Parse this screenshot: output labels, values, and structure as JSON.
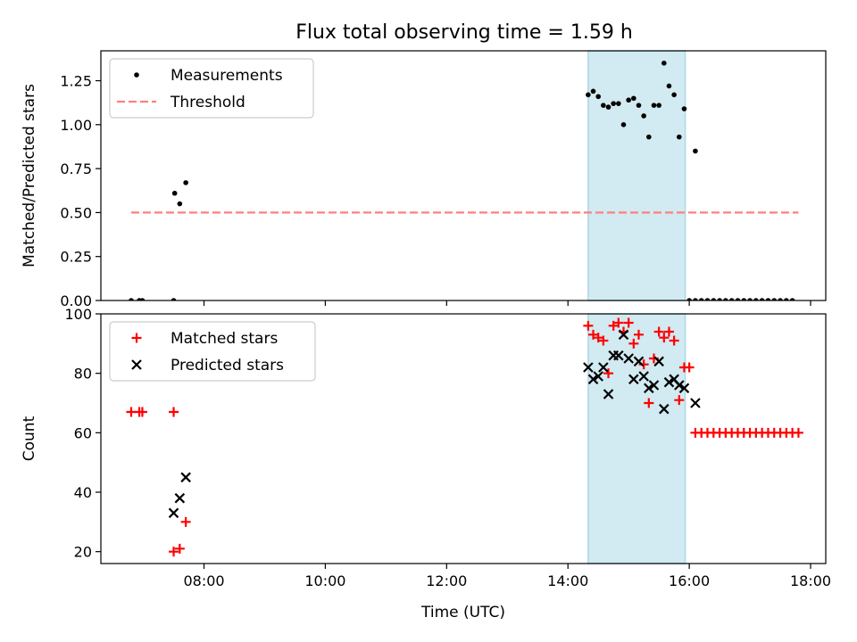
{
  "chart_data": [
    {
      "type": "scatter",
      "title": "Flux total observing time = 1.59 h",
      "xlabel": "",
      "ylabel": "Matched/Predicted stars",
      "xlim": [
        "06:18",
        "18:15"
      ],
      "ylim": [
        0,
        1.42
      ],
      "yticks": [
        0.0,
        0.25,
        0.5,
        0.75,
        1.0,
        1.25
      ],
      "ytick_labels": [
        "0.00",
        "0.25",
        "0.50",
        "0.75",
        "1.00",
        "1.25"
      ],
      "xticks": [
        "08:00",
        "10:00",
        "12:00",
        "14:00",
        "16:00",
        "18:00"
      ],
      "shaded_span": [
        "14:20",
        "15:56"
      ],
      "shade_color": "#add8e6",
      "legend_position": "upper left",
      "series": [
        {
          "name": "Measurements",
          "marker": "dot",
          "color": "#000000",
          "points": [
            [
              "06:48",
              0.0
            ],
            [
              "06:56",
              0.0
            ],
            [
              "06:59",
              0.0
            ],
            [
              "07:30",
              0.0
            ],
            [
              "07:31",
              0.61
            ],
            [
              "07:36",
              0.55
            ],
            [
              "07:42",
              0.67
            ],
            [
              "14:20",
              1.17
            ],
            [
              "14:25",
              1.19
            ],
            [
              "14:30",
              1.16
            ],
            [
              "14:35",
              1.11
            ],
            [
              "14:40",
              1.1
            ],
            [
              "14:45",
              1.12
            ],
            [
              "14:50",
              1.12
            ],
            [
              "14:55",
              1.0
            ],
            [
              "15:00",
              1.14
            ],
            [
              "15:05",
              1.15
            ],
            [
              "15:10",
              1.11
            ],
            [
              "15:15",
              1.05
            ],
            [
              "15:20",
              0.93
            ],
            [
              "15:25",
              1.11
            ],
            [
              "15:30",
              1.11
            ],
            [
              "15:35",
              1.35
            ],
            [
              "15:40",
              1.22
            ],
            [
              "15:45",
              1.17
            ],
            [
              "15:50",
              0.93
            ],
            [
              "15:55",
              1.09
            ],
            [
              "16:06",
              0.85
            ],
            [
              "16:00",
              0.0
            ],
            [
              "16:06",
              0.0
            ],
            [
              "16:12",
              0.0
            ],
            [
              "16:18",
              0.0
            ],
            [
              "16:24",
              0.0
            ],
            [
              "16:30",
              0.0
            ],
            [
              "16:36",
              0.0
            ],
            [
              "16:42",
              0.0
            ],
            [
              "16:48",
              0.0
            ],
            [
              "16:54",
              0.0
            ],
            [
              "17:00",
              0.0
            ],
            [
              "17:06",
              0.0
            ],
            [
              "17:12",
              0.0
            ],
            [
              "17:18",
              0.0
            ],
            [
              "17:24",
              0.0
            ],
            [
              "17:30",
              0.0
            ],
            [
              "17:36",
              0.0
            ],
            [
              "17:42",
              0.0
            ]
          ]
        },
        {
          "name": "Threshold",
          "marker": "dashed-line",
          "color": "#ff7f7f",
          "points": [
            [
              "06:48",
              0.5
            ],
            [
              "17:48",
              0.5
            ]
          ]
        }
      ]
    },
    {
      "type": "scatter",
      "title": "",
      "xlabel": "Time (UTC)",
      "ylabel": "Count",
      "xlim": [
        "06:18",
        "18:15"
      ],
      "ylim": [
        16,
        100
      ],
      "yticks": [
        20,
        40,
        60,
        80,
        100
      ],
      "ytick_labels": [
        "20",
        "40",
        "60",
        "80",
        "100"
      ],
      "xticks": [
        "08:00",
        "10:00",
        "12:00",
        "14:00",
        "16:00",
        "18:00"
      ],
      "xtick_labels": [
        "08:00",
        "10:00",
        "12:00",
        "14:00",
        "16:00",
        "18:00"
      ],
      "shaded_span": [
        "14:20",
        "15:56"
      ],
      "shade_color": "#add8e6",
      "legend_position": "upper left",
      "series": [
        {
          "name": "Matched stars",
          "marker": "plus",
          "color": "#ff0000",
          "points": [
            [
              "06:48",
              67
            ],
            [
              "06:56",
              67
            ],
            [
              "06:59",
              67
            ],
            [
              "07:30",
              67
            ],
            [
              "07:30",
              20
            ],
            [
              "07:36",
              21
            ],
            [
              "07:42",
              30
            ],
            [
              "14:20",
              96
            ],
            [
              "14:25",
              93
            ],
            [
              "14:30",
              92
            ],
            [
              "14:35",
              91
            ],
            [
              "14:40",
              80
            ],
            [
              "14:45",
              96
            ],
            [
              "14:50",
              97
            ],
            [
              "14:55",
              94
            ],
            [
              "15:00",
              97
            ],
            [
              "15:05",
              90
            ],
            [
              "15:10",
              93
            ],
            [
              "15:15",
              83
            ],
            [
              "15:20",
              70
            ],
            [
              "15:25",
              85
            ],
            [
              "15:30",
              94
            ],
            [
              "15:35",
              92
            ],
            [
              "15:40",
              94
            ],
            [
              "15:45",
              91
            ],
            [
              "15:50",
              71
            ],
            [
              "15:55",
              82
            ],
            [
              "16:00",
              82
            ],
            [
              "16:06",
              60
            ],
            [
              "16:12",
              60
            ],
            [
              "16:18",
              60
            ],
            [
              "16:24",
              60
            ],
            [
              "16:30",
              60
            ],
            [
              "16:36",
              60
            ],
            [
              "16:42",
              60
            ],
            [
              "16:48",
              60
            ],
            [
              "16:54",
              60
            ],
            [
              "17:00",
              60
            ],
            [
              "17:06",
              60
            ],
            [
              "17:12",
              60
            ],
            [
              "17:18",
              60
            ],
            [
              "17:24",
              60
            ],
            [
              "17:30",
              60
            ],
            [
              "17:36",
              60
            ],
            [
              "17:42",
              60
            ],
            [
              "17:48",
              60
            ]
          ]
        },
        {
          "name": "Predicted stars",
          "marker": "x",
          "color": "#000000",
          "points": [
            [
              "07:30",
              33
            ],
            [
              "07:36",
              38
            ],
            [
              "07:42",
              45
            ],
            [
              "14:20",
              82
            ],
            [
              "14:25",
              78
            ],
            [
              "14:30",
              79
            ],
            [
              "14:35",
              82
            ],
            [
              "14:40",
              73
            ],
            [
              "14:45",
              86
            ],
            [
              "14:50",
              86
            ],
            [
              "14:55",
              93
            ],
            [
              "15:00",
              85
            ],
            [
              "15:05",
              78
            ],
            [
              "15:10",
              84
            ],
            [
              "15:15",
              79
            ],
            [
              "15:20",
              75
            ],
            [
              "15:25",
              76
            ],
            [
              "15:30",
              84
            ],
            [
              "15:35",
              68
            ],
            [
              "15:40",
              77
            ],
            [
              "15:45",
              78
            ],
            [
              "15:50",
              76
            ],
            [
              "15:55",
              75
            ],
            [
              "16:06",
              70
            ]
          ]
        }
      ]
    }
  ]
}
